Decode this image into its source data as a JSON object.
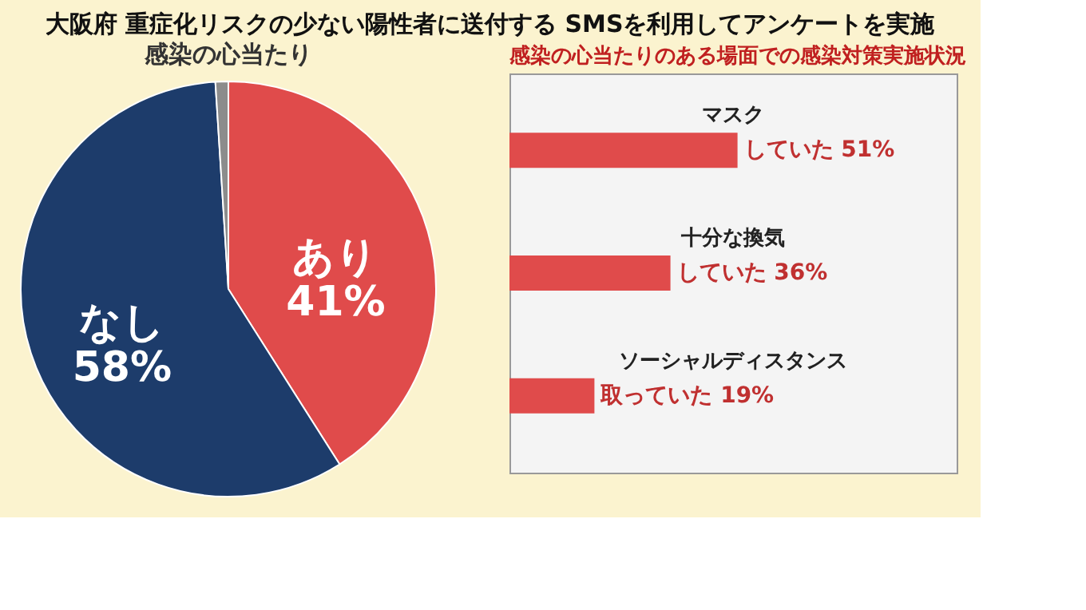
{
  "chart_data": [
    {
      "type": "pie",
      "title": "大阪府 重症化リスクの少ない陽性者に送付する SMSを利用してアンケートを実施",
      "subtitle": "感染の心当たり",
      "categories": [
        "あり",
        "なし",
        null
      ],
      "values": [
        41,
        58,
        1
      ],
      "colors": [
        "#e04b4b",
        "#1d3c6b",
        "#8c8c8c"
      ],
      "value_labels": [
        "41%",
        "58%",
        null
      ]
    },
    {
      "type": "bar",
      "orientation": "horizontal",
      "title": "感染の心当たりのある場面での感染対策実施状況",
      "categories": [
        "マスク",
        "十分な換気",
        "ソーシャルディスタンス"
      ],
      "values": [
        51,
        36,
        19
      ],
      "color": "#e04b4b",
      "xlim": [
        0,
        100
      ],
      "tick_labels": false,
      "value_labels": [
        "していた 51%",
        "していた 36%",
        "取っていた 19%"
      ]
    }
  ]
}
